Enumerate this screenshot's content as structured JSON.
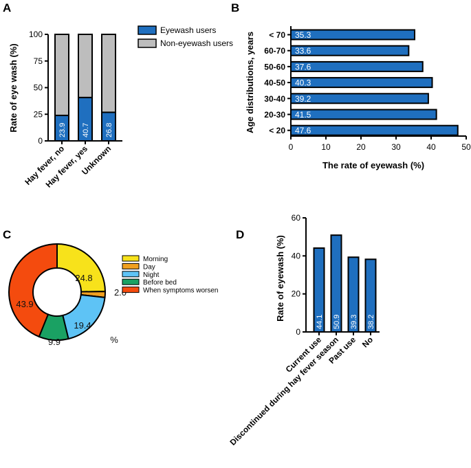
{
  "chart_data": [
    {
      "panel": "A",
      "type": "bar",
      "stacked": true,
      "categories": [
        "Hay fever, no",
        "Hay fever, yes",
        "Unknown"
      ],
      "series": [
        {
          "name": "Eyewash users",
          "values": [
            23.9,
            40.7,
            26.8
          ],
          "color": "#1f6fbf"
        },
        {
          "name": "Non-eyewash users",
          "values": [
            76.1,
            59.3,
            73.2
          ],
          "color": "#bdbdbd"
        }
      ],
      "data_labels": [
        "23.9",
        "40.7",
        "26.8"
      ],
      "ylabel": "Rate of eye wash (%)",
      "xlabel": "",
      "ylim": [
        0,
        100
      ],
      "yticks": [
        "0",
        "25",
        "50",
        "75",
        "100"
      ]
    },
    {
      "panel": "B",
      "type": "bar",
      "orientation": "horizontal",
      "categories": [
        "< 70",
        "60-70",
        "50-60",
        "40-50",
        "30-40",
        "20-30",
        "< 20"
      ],
      "values": [
        35.3,
        33.6,
        37.6,
        40.3,
        39.2,
        41.5,
        47.6
      ],
      "data_labels": [
        "35.3",
        "33.6",
        "37.6",
        "40.3",
        "39.2",
        "41.5",
        "47.6"
      ],
      "color": "#1f6fbf",
      "xlabel": "The rate of eyewash (%)",
      "ylabel": "Age distributions, years",
      "xlim": [
        0,
        50
      ],
      "xticks": [
        "0",
        "10",
        "20",
        "30",
        "40",
        "50"
      ]
    },
    {
      "panel": "C",
      "type": "pie",
      "donut": true,
      "categories": [
        "Morning",
        "Day",
        "Night",
        "Before bed",
        "When symptoms worsen"
      ],
      "values": [
        24.8,
        2.0,
        19.4,
        9.9,
        43.9
      ],
      "data_labels": [
        "24.8",
        "2.0",
        "19.4",
        "9.9",
        "43.9"
      ],
      "colors": [
        "#f7e21b",
        "#f0a020",
        "#5ec3f5",
        "#1aa163",
        "#f44b0e"
      ],
      "unit_label": "%"
    },
    {
      "panel": "D",
      "type": "bar",
      "categories": [
        "Current use",
        "Discontinued during hay fever season",
        "Past use",
        "No"
      ],
      "values": [
        44.1,
        50.9,
        39.3,
        38.2
      ],
      "data_labels": [
        "44.1",
        "50.9",
        "39.3",
        "38.2"
      ],
      "color": "#1f6fbf",
      "ylabel": "Rate of eyewash (%)",
      "xlabel": "",
      "ylim": [
        0,
        60
      ],
      "yticks": [
        "0",
        "20",
        "40",
        "60"
      ]
    }
  ],
  "panel_labels": [
    "A",
    "B",
    "C",
    "D"
  ]
}
